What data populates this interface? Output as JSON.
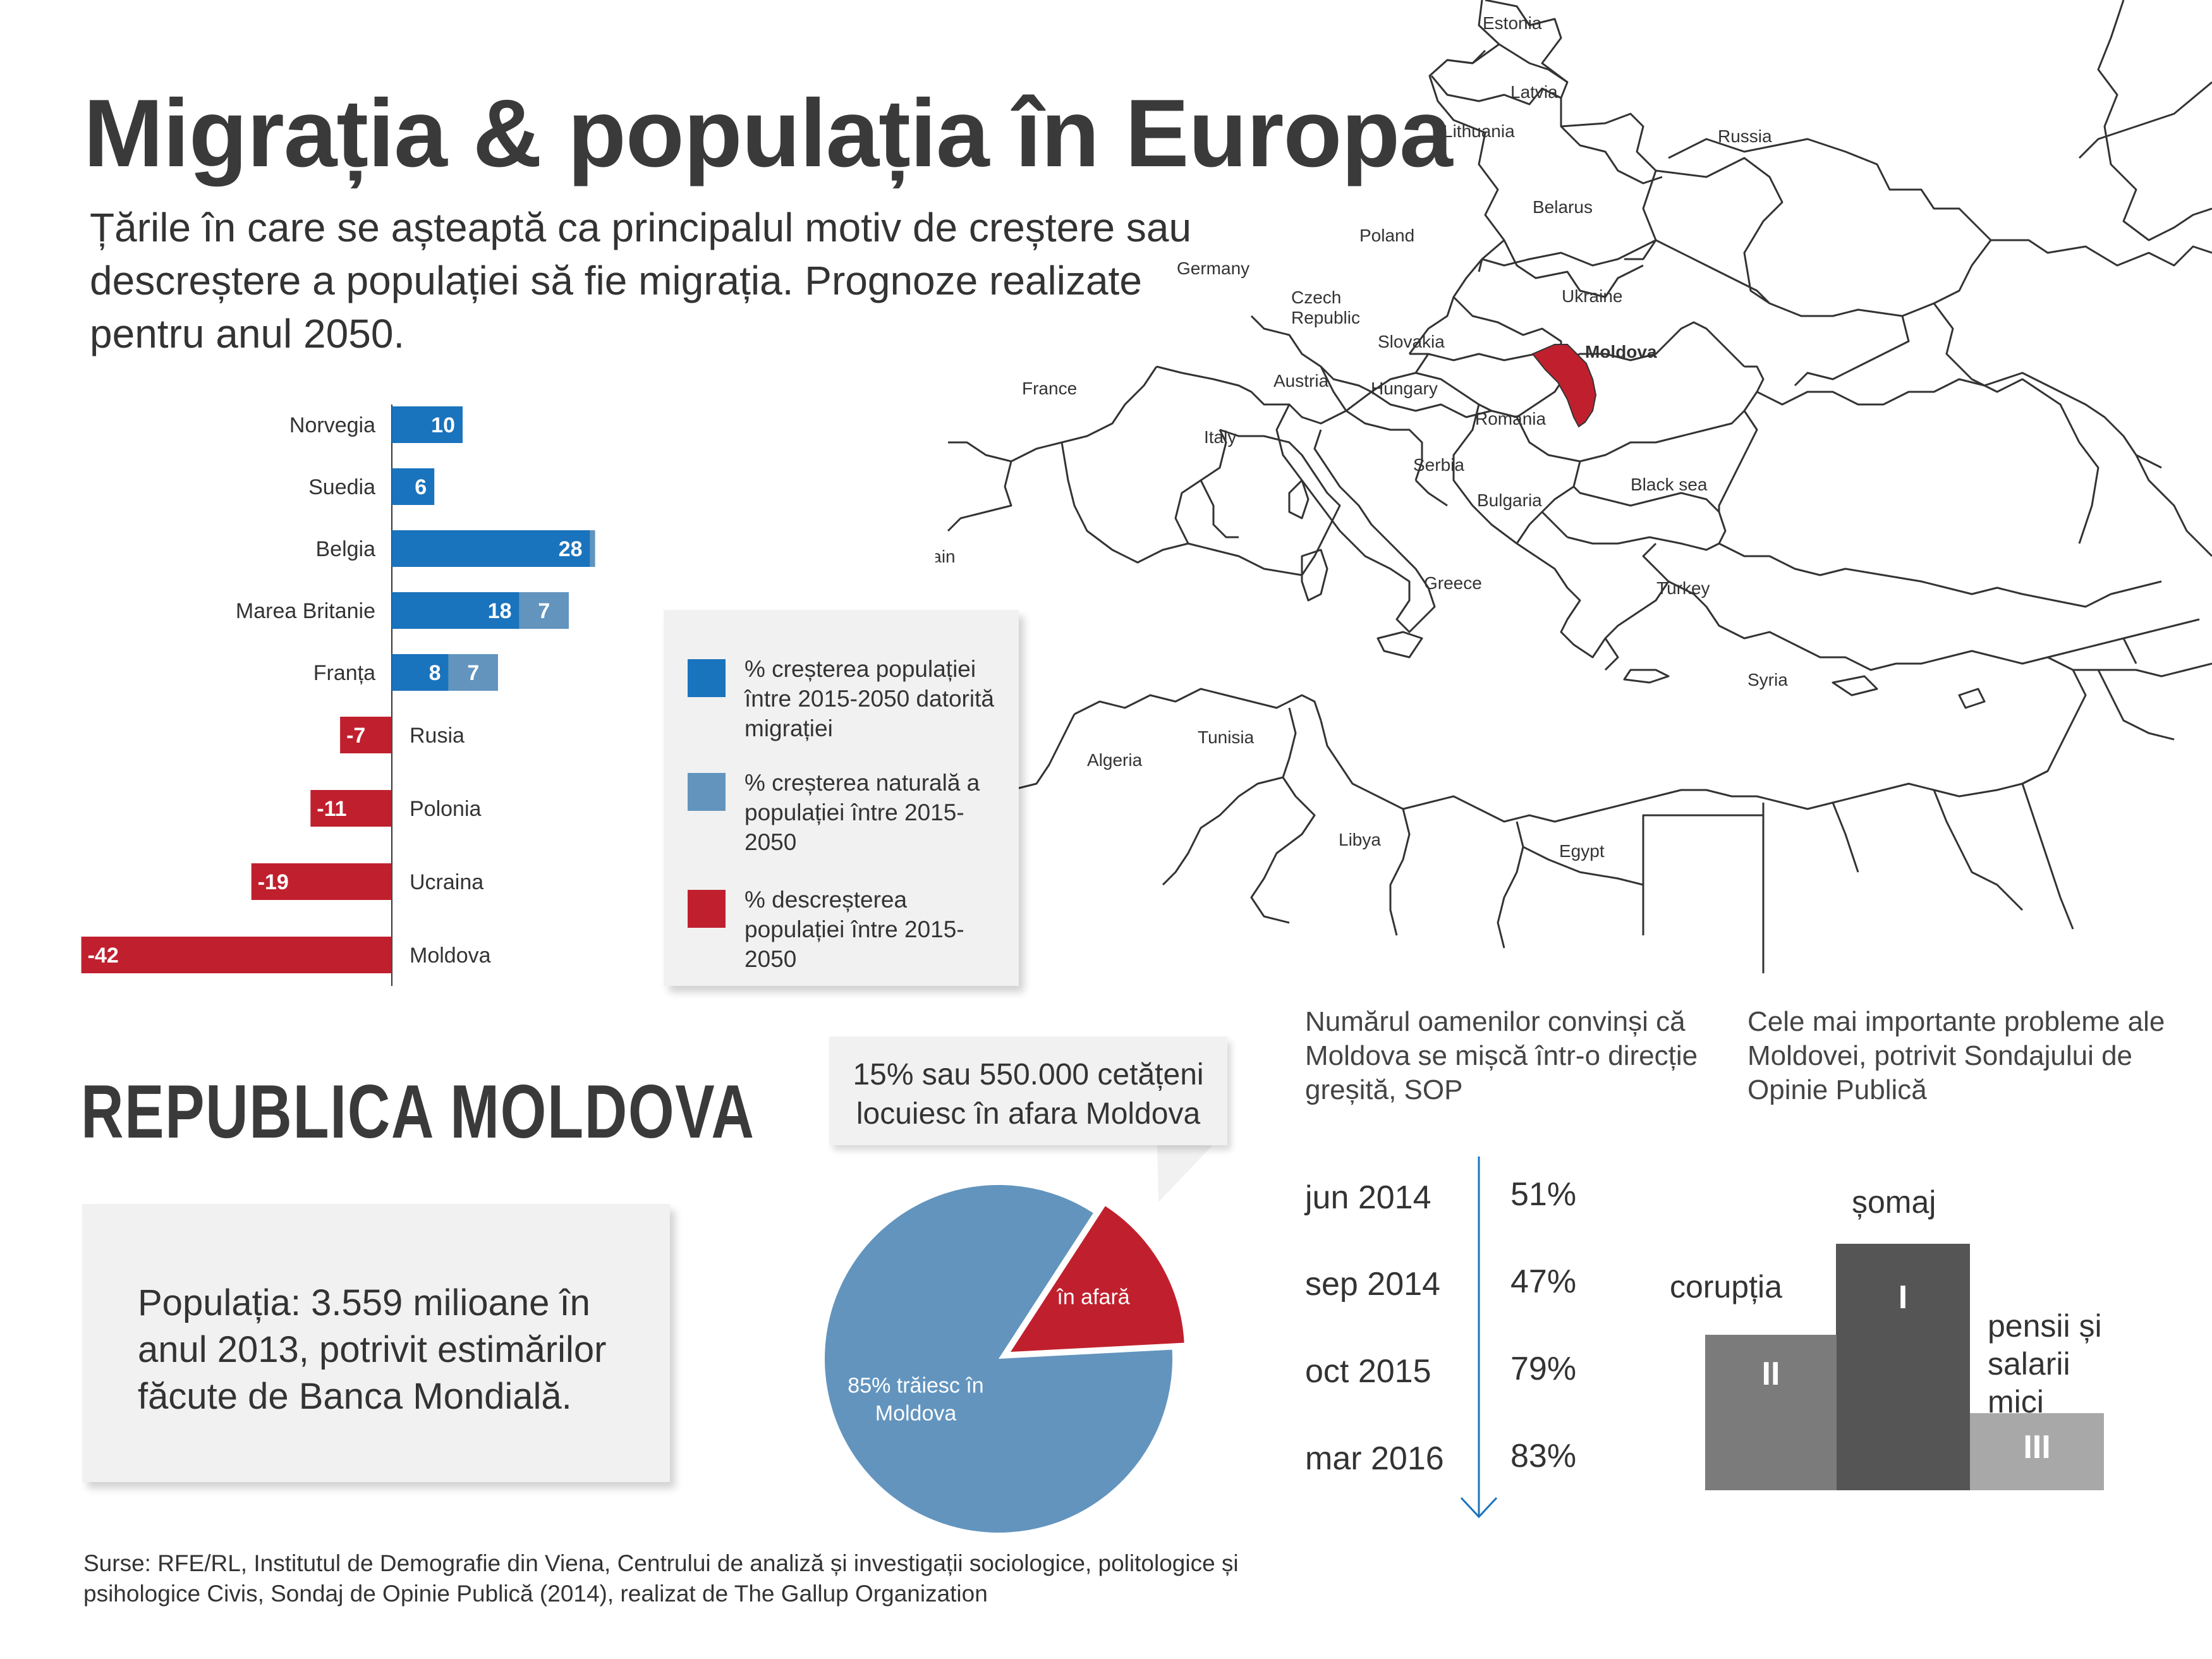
{
  "title": "Migrația & populația în Europa",
  "subtitle": "Țările în care se așteaptă ca principalul motiv de creștere sau descreștere a populației să fie migrația. Prognoze realizate pentru anul 2050.",
  "map": {
    "labels": [
      "Estonia",
      "Latvia",
      "Lithuania",
      "Russia",
      "Belarus",
      "Poland",
      "Germany",
      "Czech",
      "Republic",
      "Ukraine",
      "Slovakia",
      "Moldova",
      "France",
      "Austria",
      "Hungary",
      "Romania",
      "Italy",
      "Serbia",
      "Bulgaria",
      "Black sea",
      "Spain",
      "Greece",
      "Turkey",
      "Syria",
      "Tunisia",
      "Algeria",
      "Libya",
      "Egypt"
    ],
    "highlight": "Moldova",
    "colors": {
      "highlight": "#c0202e",
      "border": "#333333"
    }
  },
  "chart_data": {
    "type": "bar",
    "orientation": "horizontal",
    "stacked": true,
    "categories": [
      "Norvegia",
      "Suedia",
      "Belgia",
      "Marea Britanie",
      "Franța",
      "Rusia",
      "Polonia",
      "Ucraina",
      "Moldova"
    ],
    "series": [
      {
        "name": "% creșterea populației între 2015-2050 datorită migrației",
        "color": "#1a73bd",
        "values": [
          10,
          6,
          28,
          18,
          8,
          null,
          null,
          null,
          null
        ],
        "display_values": [
          "10",
          "6",
          "28",
          "18",
          "8",
          "",
          "",
          "",
          ""
        ]
      },
      {
        "name": "% creșterea naturală a populației între 2015-2050",
        "color": "#6294be",
        "values": [
          null,
          null,
          0.4,
          7,
          7,
          null,
          null,
          null,
          null
        ],
        "display_values": [
          "",
          "",
          "0.4",
          "7",
          "7",
          "",
          "",
          "",
          ""
        ]
      },
      {
        "name": "% descreșterea populației între 2015-2050",
        "color": "#c0202e",
        "values": [
          null,
          null,
          null,
          null,
          null,
          -7,
          -11,
          -19,
          -42
        ],
        "display_values": [
          "",
          "",
          "",
          "",
          "",
          "-7",
          "-11",
          "-19",
          "-42"
        ]
      }
    ]
  },
  "legend": [
    {
      "text": "% creșterea populației între 2015-2050 datorită migrației",
      "color": "#1a73bd"
    },
    {
      "text": "% creșterea naturală a populației între 2015-2050",
      "color": "#6294be"
    },
    {
      "text": "% descreșterea populației între 2015-2050",
      "color": "#c0202e"
    }
  ],
  "republica": {
    "heading": "REPUBLICA MOLDOVA",
    "population_text": "Populația: 3.559 milioane în anul 2013, potrivit estimărilor făcute de Banca Mondială."
  },
  "pie": {
    "callout": "15% sau 550.000 cetățeni locuiesc în afara Moldova",
    "slices": [
      {
        "label": "în afară",
        "value": 15,
        "color": "#c0202e"
      },
      {
        "label": "85% trăiesc în Moldova",
        "value": 85,
        "color": "#6294be"
      }
    ]
  },
  "sop": {
    "title": "Numărul oamenilor convinși că Moldova se mișcă într-o direcție greșită, SOP",
    "rows": [
      {
        "date": "jun 2014",
        "value": "51%"
      },
      {
        "date": "sep 2014",
        "value": "47%"
      },
      {
        "date": "oct 2015",
        "value": "79%"
      },
      {
        "date": "mar 2016",
        "value": "83%"
      }
    ],
    "arrow_color": "#1a73bd"
  },
  "problems": {
    "title": "Cele mai importante probleme ale Moldovei, potrivit Sondajului de Opinie Publică",
    "items": [
      {
        "rank": "I",
        "label": "șomaj",
        "color": "#555555"
      },
      {
        "rank": "II",
        "label": "corupția",
        "color": "#7b7b7b"
      },
      {
        "rank": "III",
        "label": "pensii și salarii mici",
        "color": "#a8a8a8"
      }
    ]
  },
  "sources": "Surse: RFE/RL, Institutul de Demografie din Viena, Centrului de analiză și investigații sociologice, politologice și psihologice Civis, Sondaj de Opinie Publică (2014), realizat de The Gallup Organization"
}
